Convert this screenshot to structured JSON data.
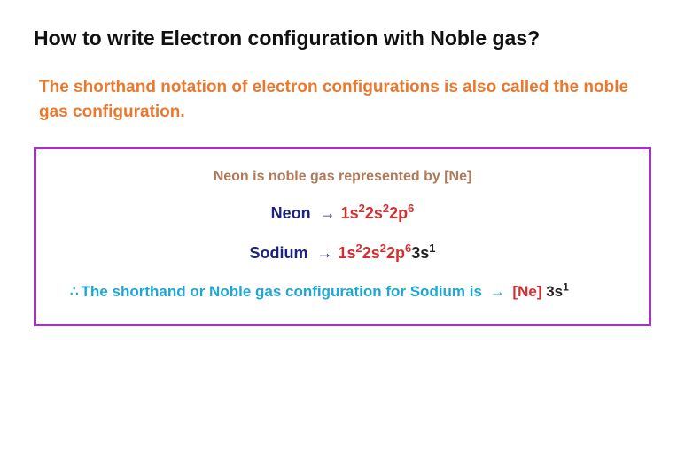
{
  "colors": {
    "heading": "#111111",
    "subheading": "#e8792f",
    "box_border": "#a033c2",
    "box_caption": "#b07a5a",
    "element_name": "#1a237e",
    "arrow": "#1a237e",
    "orbital_core": "#d32f2f",
    "orbital_extra": "#222222",
    "conclusion_text": "#1ea7d6",
    "noble_symbol": "#d32f2f"
  },
  "heading": "How to write Electron configuration with Noble gas?",
  "subheading": "The shorthand notation of electron configurations is also called the noble gas configuration.",
  "box": {
    "caption": "Neon is noble gas represented by [Ne]",
    "rows": [
      {
        "label": "Neon",
        "arrow": "→",
        "config_core": [
          {
            "shell": "1s",
            "sup": "2"
          },
          {
            "shell": "2s",
            "sup": "2"
          },
          {
            "shell": "2p",
            "sup": "6"
          }
        ],
        "config_extra": []
      },
      {
        "label": "Sodium",
        "arrow": "→",
        "config_core": [
          {
            "shell": "1s",
            "sup": "2"
          },
          {
            "shell": "2s",
            "sup": "2"
          },
          {
            "shell": "2p",
            "sup": "6"
          }
        ],
        "config_extra": [
          {
            "shell": "3s",
            "sup": "1"
          }
        ]
      }
    ],
    "conclusion": {
      "therefore": "∴",
      "text_before": "The shorthand or Noble gas configuration for Sodium is",
      "arrow": "→",
      "noble": "[Ne]",
      "extra": [
        {
          "shell": "3s",
          "sup": "1"
        }
      ]
    }
  }
}
